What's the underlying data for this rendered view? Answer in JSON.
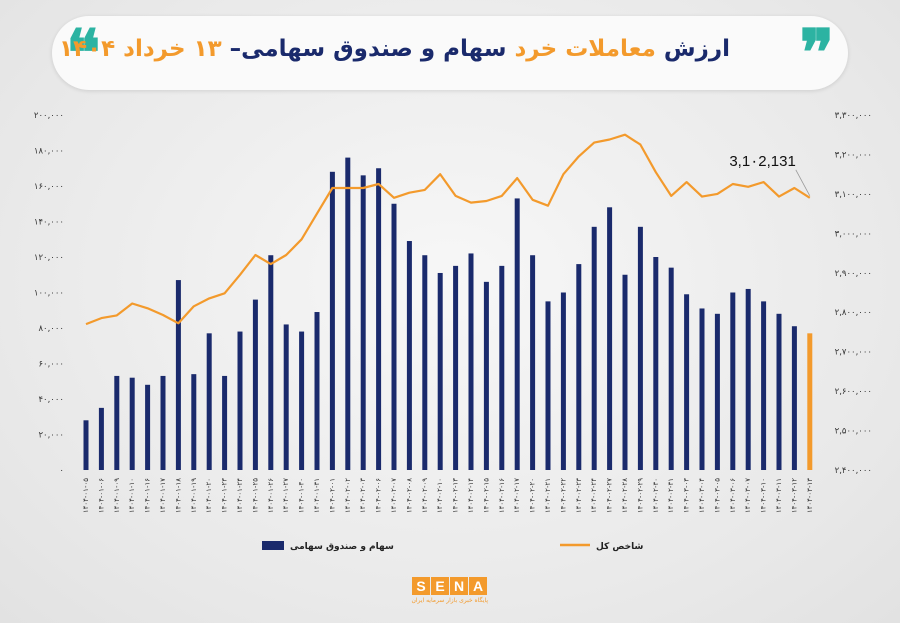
{
  "header": {
    "title_part1": "ارزش",
    "title_part2": "معاملات خرد",
    "title_part3": "سهام و صندوق سهامی–",
    "title_part4": "۱۳ خرداد ۱۴۰۴",
    "quote_left": "❝",
    "quote_right": "❞",
    "accent_color": "#f39a2c",
    "quote_color": "#2cb3a2",
    "text_color": "#1a2a6c"
  },
  "logo": {
    "letters": [
      "S",
      "E",
      "N",
      "A"
    ],
    "tagline": "پایگاه خبری بازار سرمایه ایران"
  },
  "chart_data": {
    "type": "bar",
    "categories": [
      "۱۴۰۴-۰۱-۰۵",
      "۱۴۰۴-۰۱-۰۶",
      "۱۴۰۴-۰۱-۰۹",
      "۱۴۰۴-۰۱-۱۰",
      "۱۴۰۴-۰۱-۱۶",
      "۱۴۰۴-۰۱-۱۷",
      "۱۴۰۴-۰۱-۱۸",
      "۱۴۰۴-۰۱-۱۹",
      "۱۴۰۴-۰۱-۲۰",
      "۱۴۰۴-۰۱-۲۳",
      "۱۴۰۴-۰۱-۲۴",
      "۱۴۰۴-۰۱-۲۵",
      "۱۴۰۴-۰۱-۲۶",
      "۱۴۰۴-۰۱-۲۷",
      "۱۴۰۴-۰۱-۳۰",
      "۱۴۰۴-۰۱-۳۱",
      "۱۴۰۴-۰۲-۰۱",
      "۱۴۰۴-۰۲-۰۲",
      "۱۴۰۴-۰۲-۰۳",
      "۱۴۰۴-۰۲-۰۶",
      "۱۴۰۴-۰۲-۰۷",
      "۱۴۰۴-۰۲-۰۸",
      "۱۴۰۴-۰۲-۰۹",
      "۱۴۰۴-۰۲-۱۰",
      "۱۴۰۴-۰۲-۱۳",
      "۱۴۰۴-۰۲-۱۴",
      "۱۴۰۴-۰۲-۱۵",
      "۱۴۰۴-۰۲-۱۶",
      "۱۴۰۴-۰۲-۱۷",
      "۱۴۰۴-۰۲-۲۰",
      "۱۴۰۴-۰۲-۲۱",
      "۱۴۰۴-۰۲-۲۲",
      "۱۴۰۴-۰۲-۲۳",
      "۱۴۰۴-۰۲-۲۴",
      "۱۴۰۴-۰۲-۲۷",
      "۱۴۰۴-۰۲-۲۸",
      "۱۴۰۴-۰۲-۲۹",
      "۱۴۰۴-۰۲-۳۰",
      "۱۴۰۴-۰۲-۳۱",
      "۱۴۰۴-۰۳-۰۳",
      "۱۴۰۴-۰۳-۰۴",
      "۱۴۰۴-۰۳-۰۵",
      "۱۴۰۴-۰۳-۰۶",
      "۱۴۰۴-۰۳-۰۷",
      "۱۴۰۴-۰۳-۱۰",
      "۱۴۰۴-۰۳-۱۱",
      "۱۴۰۴-۰۳-۱۲",
      "۱۴۰۴-۰۳-۱۳"
    ],
    "series": [
      {
        "name": "سهام و صندوق سهامی",
        "axis": "left",
        "color": "#1a2a6c",
        "last_color": "#f39a2c",
        "values": [
          28000,
          35000,
          53000,
          52000,
          48000,
          53000,
          107000,
          54000,
          77000,
          53000,
          78000,
          96000,
          121000,
          82000,
          78000,
          89000,
          168000,
          176000,
          166000,
          170000,
          150000,
          129000,
          121000,
          111000,
          115000,
          122000,
          106000,
          115000,
          153000,
          121000,
          95000,
          100000,
          116000,
          137000,
          148000,
          110000,
          137000,
          120000,
          114000,
          99000,
          91000,
          88000,
          100000,
          102000,
          95000,
          88000,
          81000,
          77000
        ]
      },
      {
        "name": "شاخص کل",
        "axis": "right",
        "color": "#f39a2c",
        "values": [
          2770000,
          2785000,
          2792000,
          2822000,
          2810000,
          2793000,
          2772000,
          2815000,
          2835000,
          2848000,
          2895000,
          2945000,
          2922000,
          2945000,
          2985000,
          3050000,
          3115000,
          3115000,
          3115000,
          3125000,
          3090000,
          3103000,
          3110000,
          3150000,
          3095000,
          3078000,
          3082000,
          3095000,
          3140000,
          3085000,
          3070000,
          3150000,
          3195000,
          3230000,
          3238000,
          3250000,
          3225000,
          3155000,
          3095000,
          3130000,
          3093000,
          3100000,
          3125000,
          3118000,
          3130000,
          3093000,
          3115000,
          3090000
        ]
      }
    ],
    "ylim_left": [
      0,
      200000
    ],
    "ylim_right": [
      2400000,
      3300000
    ],
    "yticks_left": [
      "۰",
      "۲۰,۰۰۰",
      "۴۰,۰۰۰",
      "۶۰,۰۰۰",
      "۸۰,۰۰۰",
      "۱۰۰,۰۰۰",
      "۱۲۰,۰۰۰",
      "۱۴۰,۰۰۰",
      "۱۶۰,۰۰۰",
      "۱۸۰,۰۰۰",
      "۲۰۰,۰۰۰"
    ],
    "yticks_right": [
      "۲,۴۰۰,۰۰۰",
      "۲,۵۰۰,۰۰۰",
      "۲,۶۰۰,۰۰۰",
      "۲,۷۰۰,۰۰۰",
      "۲,۸۰۰,۰۰۰",
      "۲,۹۰۰,۰۰۰",
      "۳,۰۰۰,۰۰۰",
      "۳,۱۰۰,۰۰۰",
      "۳,۲۰۰,۰۰۰",
      "۳,۳۰۰,۰۰۰"
    ],
    "annotation": "3,1۰2,131",
    "legend": [
      {
        "label": "سهام و صندوق سهامی",
        "kind": "bar",
        "color": "#1a2a6c"
      },
      {
        "label": "شاخص کل",
        "kind": "line",
        "color": "#f39a2c"
      }
    ],
    "legend_position": "bottom",
    "grid": false
  }
}
